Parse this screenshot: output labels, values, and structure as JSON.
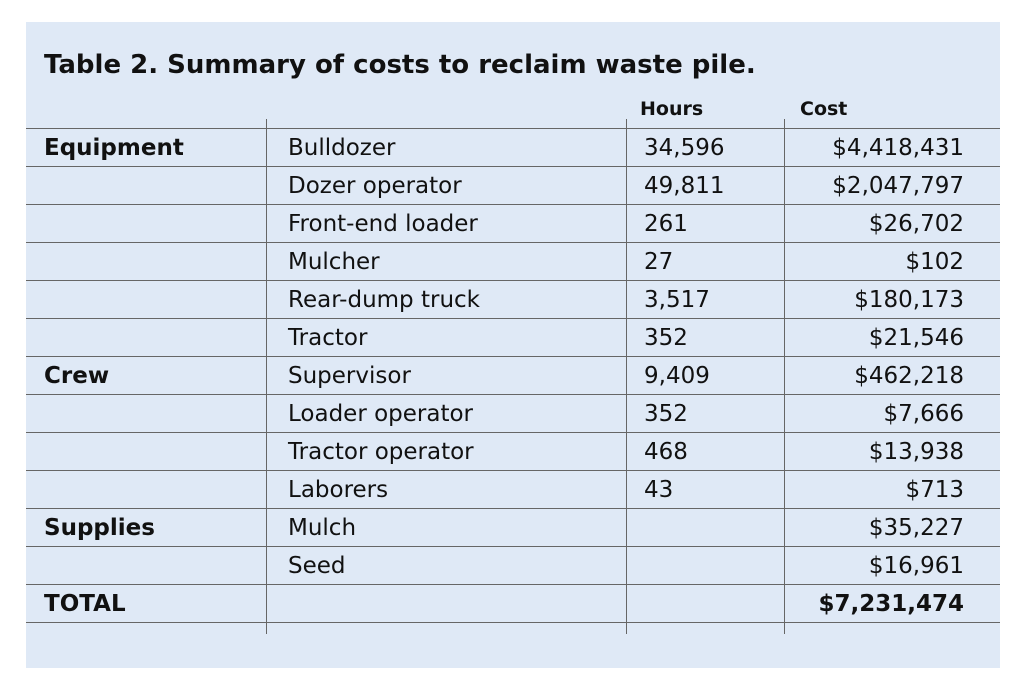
{
  "table": {
    "title": "Table 2. Summary of costs to reclaim waste pile.",
    "headers": {
      "hours": "Hours",
      "cost": "Cost"
    },
    "rows": [
      {
        "category": "Equipment",
        "item": "Bulldozer",
        "hours": "34,596",
        "cost": "$4,418,431"
      },
      {
        "category": "",
        "item": "Dozer operator",
        "hours": "49,811",
        "cost": "$2,047,797"
      },
      {
        "category": "",
        "item": "Front-end loader",
        "hours": "261",
        "cost": "$26,702"
      },
      {
        "category": "",
        "item": "Mulcher",
        "hours": "27",
        "cost": "$102"
      },
      {
        "category": "",
        "item": "Rear-dump truck",
        "hours": "3,517",
        "cost": "$180,173"
      },
      {
        "category": "",
        "item": "Tractor",
        "hours": "352",
        "cost": "$21,546"
      },
      {
        "category": "Crew",
        "item": "Supervisor",
        "hours": "9,409",
        "cost": "$462,218"
      },
      {
        "category": "",
        "item": "Loader operator",
        "hours": "352",
        "cost": "$7,666"
      },
      {
        "category": "",
        "item": "Tractor operator",
        "hours": "468",
        "cost": "$13,938"
      },
      {
        "category": "",
        "item": "Laborers",
        "hours": "43",
        "cost": "$713"
      },
      {
        "category": "Supplies",
        "item": "Mulch",
        "hours": "",
        "cost": "$35,227"
      },
      {
        "category": "",
        "item": "Seed",
        "hours": "",
        "cost": "$16,961"
      }
    ],
    "total": {
      "label": "TOTAL",
      "cost": "$7,231,474"
    }
  }
}
